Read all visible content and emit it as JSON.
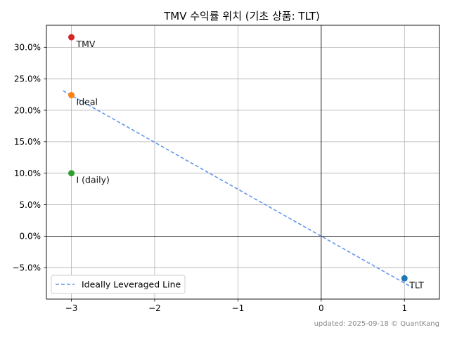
{
  "chart_data": {
    "type": "scatter",
    "title": "TMV 수익률 위치 (기초 상품: TLT)",
    "xlabel": "",
    "ylabel": "",
    "xlim": [
      -3.3,
      1.42
    ],
    "ylim": [
      -10.0,
      33.5
    ],
    "x_ticks": [
      -3,
      -2,
      -1,
      0,
      1
    ],
    "x_tick_labels": [
      "−3",
      "−2",
      "−1",
      "0",
      "1"
    ],
    "y_ticks": [
      -5,
      0,
      5,
      10,
      15,
      20,
      25,
      30
    ],
    "y_tick_labels": [
      "−5.0%",
      "0.0%",
      "5.0%",
      "10.0%",
      "15.0%",
      "20.0%",
      "25.0%",
      "30.0%"
    ],
    "grid": true,
    "zero_lines": true,
    "points": [
      {
        "label": "TMV",
        "x": -3,
        "y": 31.6,
        "color": "#d62728"
      },
      {
        "label": "Ideal",
        "x": -3,
        "y": 22.4,
        "color": "#ff7f0e"
      },
      {
        "label": "I (daily)",
        "x": -3,
        "y": 10.0,
        "color": "#2ca02c"
      },
      {
        "label": "TLT",
        "x": 1,
        "y": -6.7,
        "color": "#1f77b4"
      }
    ],
    "series": [
      {
        "name": "Ideally Leveraged Line",
        "type": "line",
        "style": "dashed",
        "color": "#6495ED",
        "x": [
          -3.1,
          1.1
        ],
        "y": [
          23.1,
          -8.2
        ]
      }
    ],
    "legend": {
      "position": "bottom-left",
      "entries": [
        "Ideally Leveraged Line"
      ]
    }
  },
  "footer": "updated: 2025-09-18 © QuantKang"
}
